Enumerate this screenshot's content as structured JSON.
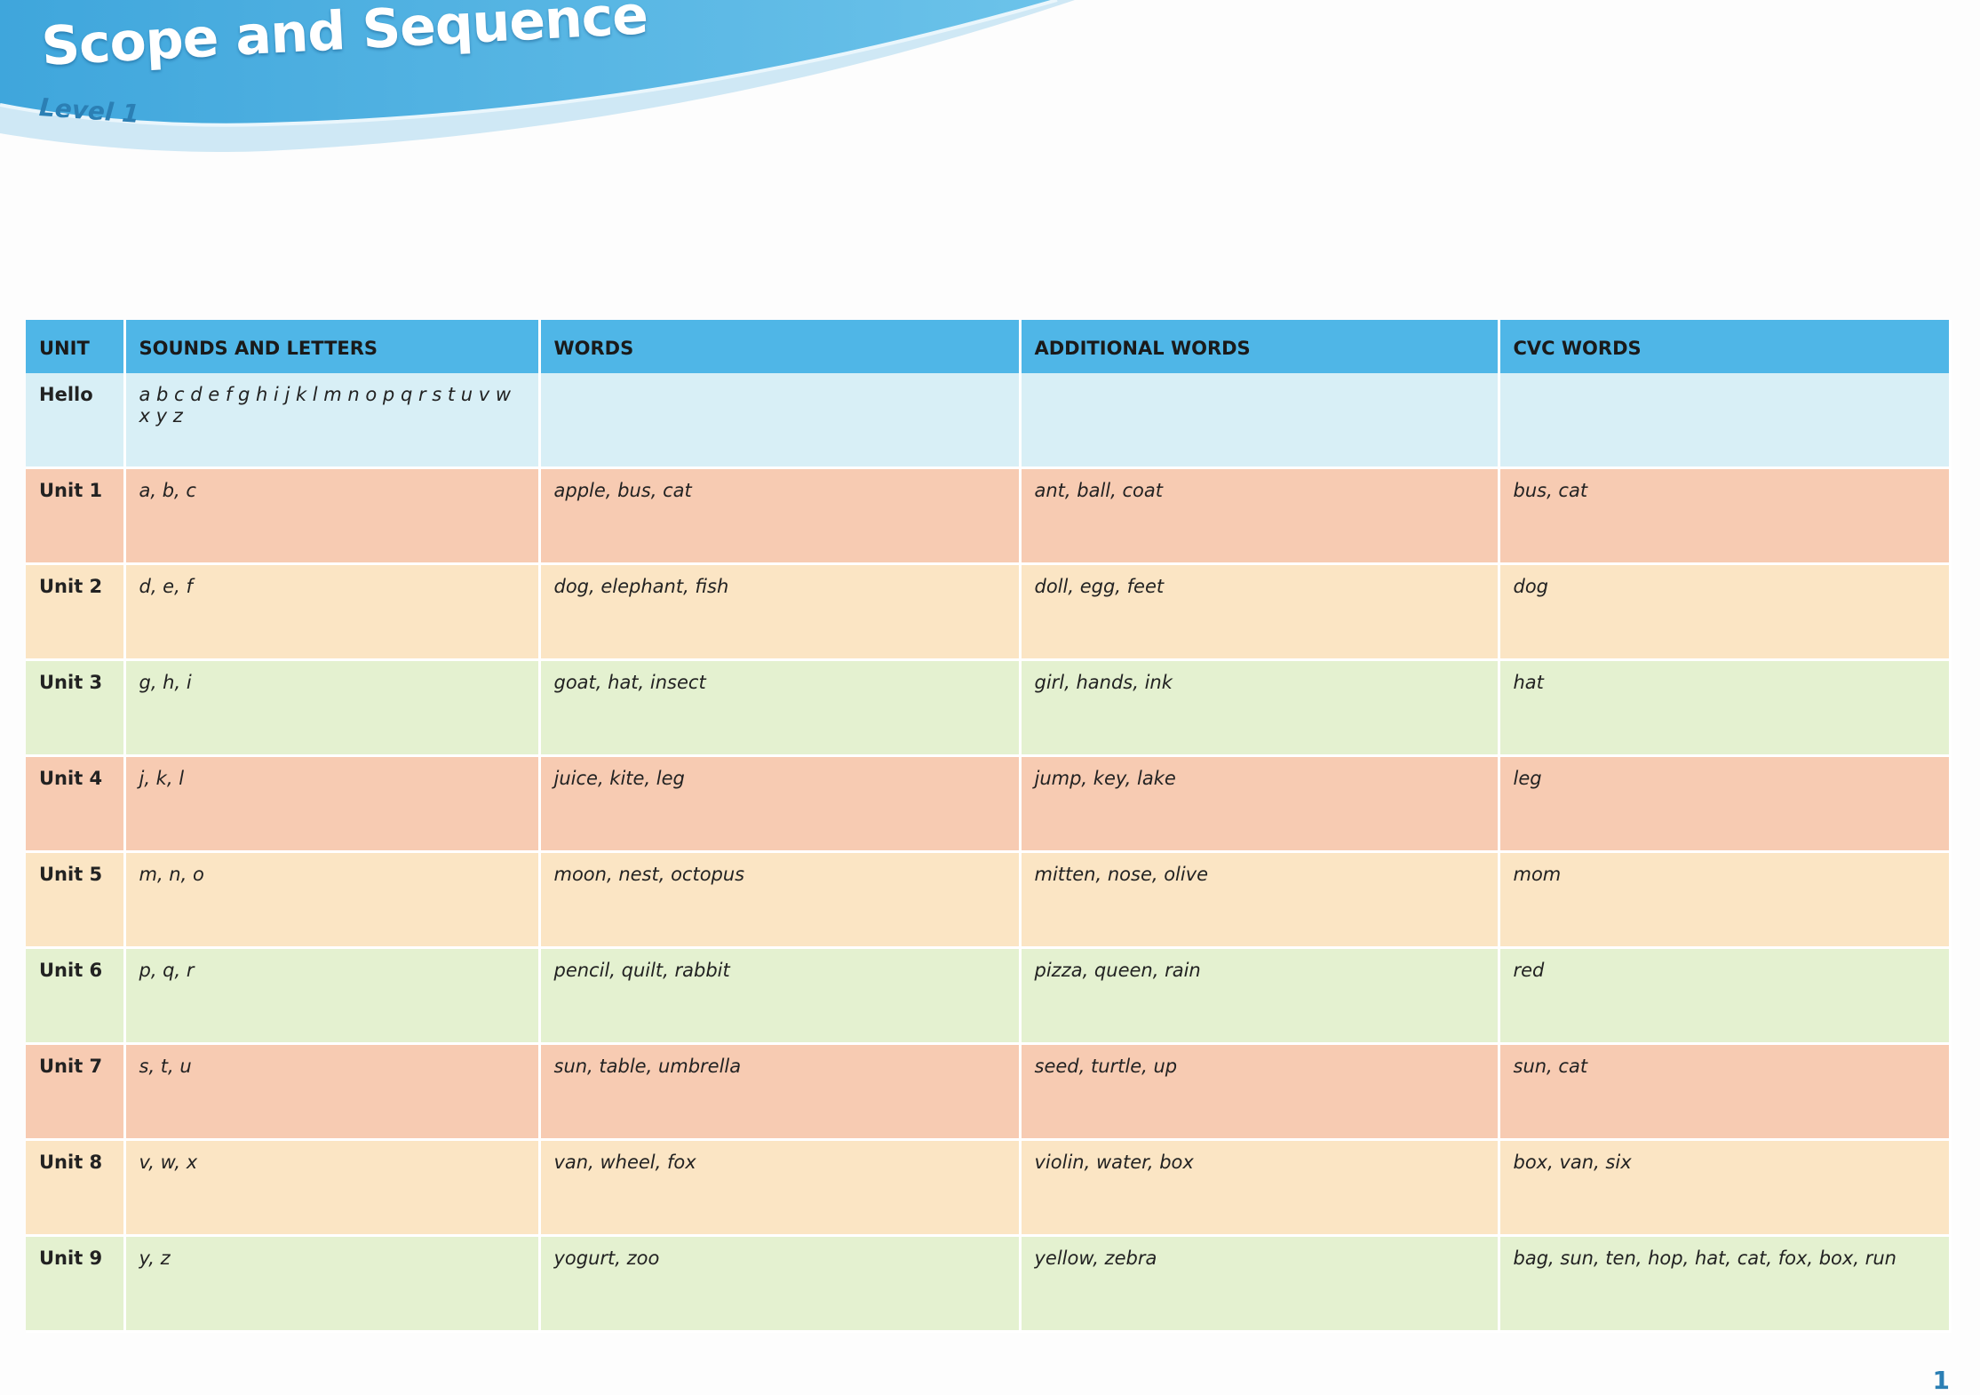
{
  "header": {
    "title": "Scope and Sequence",
    "level": "Level 1"
  },
  "table": {
    "columns": [
      "UNIT",
      "SOUNDS AND LETTERS",
      "WORDS",
      "ADDITIONAL WORDS",
      "CVC WORDS"
    ],
    "rows": [
      [
        "Hello",
        "a b c d e f g h i j k l m n o p q r s t u v w x y z",
        "",
        "",
        ""
      ],
      [
        "Unit 1",
        "a, b, c",
        "apple, bus, cat",
        "ant, ball, coat",
        "bus, cat"
      ],
      [
        "Unit 2",
        "d, e, f",
        "dog, elephant, fish",
        "doll, egg, feet",
        "dog"
      ],
      [
        "Unit 3",
        "g, h, i",
        "goat, hat, insect",
        "girl, hands, ink",
        "hat"
      ],
      [
        "Unit 4",
        "j, k, l",
        "juice, kite, leg",
        "jump, key, lake",
        "leg"
      ],
      [
        "Unit 5",
        "m, n, o",
        "moon, nest, octopus",
        "mitten, nose, olive",
        "mom"
      ],
      [
        "Unit 6",
        "p, q, r",
        "pencil, quilt, rabbit",
        "pizza, queen, rain",
        "red"
      ],
      [
        "Unit 7",
        "s, t, u",
        "sun, table, umbrella",
        "seed, turtle, up",
        "sun, cat"
      ],
      [
        "Unit 8",
        "v, w, x",
        "van, wheel, fox",
        "violin, water, box",
        "box, van, six"
      ],
      [
        "Unit 9",
        "y, z",
        "yogurt, zoo",
        "yellow, zebra",
        "bag, sun, ten, hop, hat, cat, fox, box, run"
      ]
    ]
  },
  "page_number": "1"
}
